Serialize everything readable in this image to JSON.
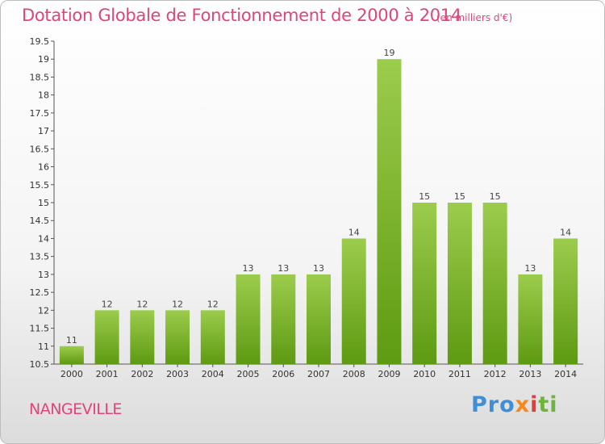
{
  "header": {
    "title": "Dotation Globale de Fonctionnement de 2000 à 2014",
    "subtitle": "(en milliers d'€)"
  },
  "footer": {
    "town": "NANGEVILLE",
    "logo": [
      "Pro",
      "x",
      "i",
      "ti"
    ]
  },
  "chart_data": {
    "type": "bar",
    "title": "Dotation Globale de Fonctionnement de 2000 à 2014",
    "subtitle": "(en milliers d'€)",
    "categories": [
      "2000",
      "2001",
      "2002",
      "2003",
      "2004",
      "2005",
      "2006",
      "2007",
      "2008",
      "2009",
      "2010",
      "2011",
      "2012",
      "2013",
      "2014"
    ],
    "values": [
      11,
      12,
      12,
      12,
      12,
      13,
      13,
      13,
      14,
      19,
      15,
      15,
      15,
      13,
      14
    ],
    "ylim": [
      10.5,
      19.5
    ],
    "yticks": [
      "10.5",
      "11",
      "11.5",
      "12",
      "12.5",
      "13",
      "13.5",
      "14",
      "14.5",
      "15",
      "15.5",
      "16",
      "16.5",
      "17",
      "17.5",
      "18",
      "18.5",
      "19",
      "19.5"
    ],
    "grid": false,
    "colors": {
      "bar_top": "#9ccc4c",
      "bar_bottom": "#5e9a12"
    }
  }
}
